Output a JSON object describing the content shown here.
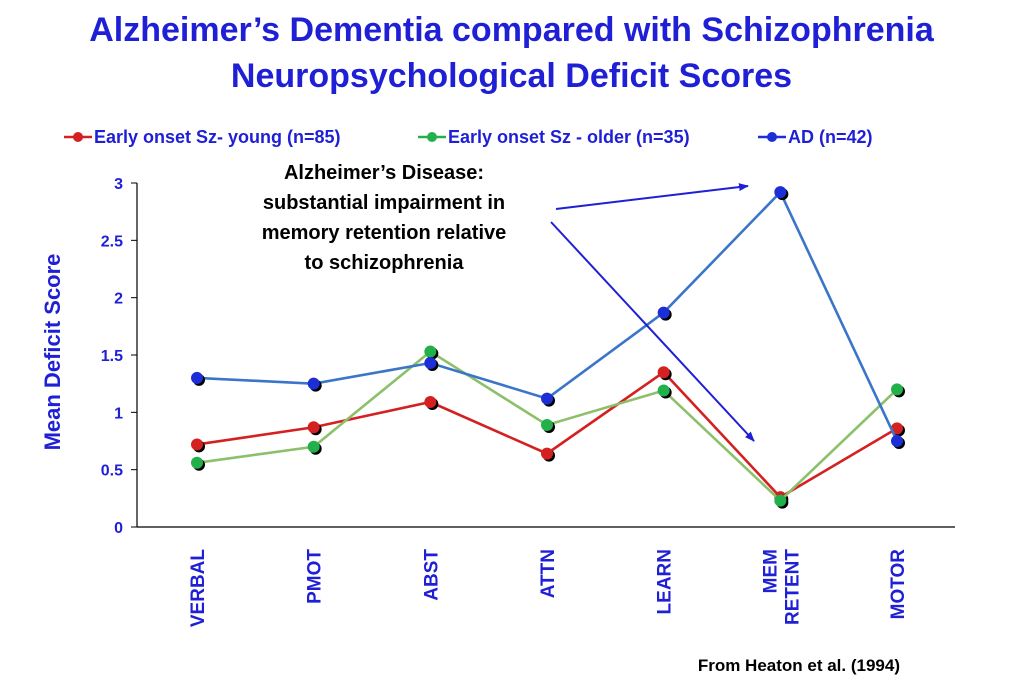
{
  "title_line1": "Alzheimer’s Dementia compared with Schizophrenia",
  "title_line2": "Neuropsychological Deficit Scores",
  "source": "From Heaton et al. (1994)",
  "annotation": {
    "lines": [
      "Alzheimer’s Disease:",
      "substantial impairment in",
      "memory retention relative",
      "to schizophrenia"
    ]
  },
  "chart_data": {
    "type": "line",
    "ylabel": "Mean Deficit Score",
    "xlabel": "",
    "ylim": [
      0,
      3
    ],
    "yticks": [
      "0",
      "0.5",
      "1",
      "1.5",
      "2",
      "2.5",
      "3"
    ],
    "categories": [
      [
        "VERBAL"
      ],
      [
        "PMOT"
      ],
      [
        "ABST"
      ],
      [
        "ATTN"
      ],
      [
        "LEARN"
      ],
      [
        "MEM",
        "RETENT"
      ],
      [
        "MOTOR"
      ]
    ],
    "legend_position": "top",
    "grid": false,
    "series": [
      {
        "name": "Early onset Sz- young (n=85)",
        "color": "#d42020",
        "values": [
          0.72,
          0.87,
          1.09,
          0.64,
          1.35,
          0.26,
          0.86
        ]
      },
      {
        "name": "Early onset Sz - older (n=35)",
        "color": "#22b04a",
        "line_color": "#8cc06a",
        "values": [
          0.56,
          0.7,
          1.53,
          0.89,
          1.19,
          0.23,
          1.2
        ]
      },
      {
        "name": "AD (n=42)",
        "color": "#1c2fd6",
        "line_color": "#3a75c8",
        "values": [
          1.3,
          1.25,
          1.43,
          1.12,
          1.87,
          2.92,
          0.75
        ]
      }
    ]
  }
}
